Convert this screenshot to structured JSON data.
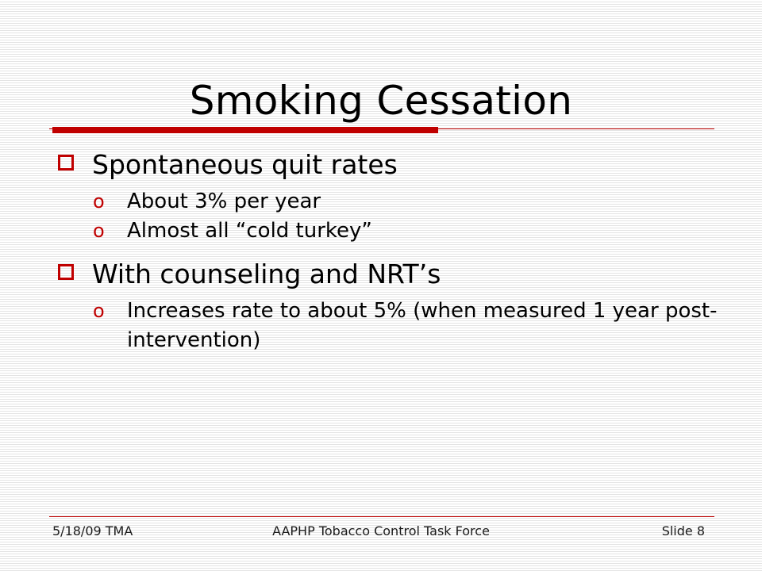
{
  "slide": {
    "title": "Smoking Cessation",
    "bullets": [
      {
        "text": "Spontaneous quit rates",
        "sub": [
          "About 3% per year",
          "Almost all “cold turkey”"
        ]
      },
      {
        "text": "With counseling and NRT’s",
        "sub": [
          "Increases rate to about 5% (when measured 1 year post-intervention)"
        ]
      }
    ],
    "sub_marker": "o"
  },
  "footer": {
    "left": "5/18/09 TMA",
    "center": "AAPHP Tobacco Control Task Force",
    "right": "Slide 8"
  },
  "colors": {
    "accent": "#c00000",
    "text": "#000000",
    "background": "#ffffff"
  },
  "icons": {
    "level1": "square-outline-bullet-icon",
    "level2": "letter-o-bullet-icon"
  }
}
